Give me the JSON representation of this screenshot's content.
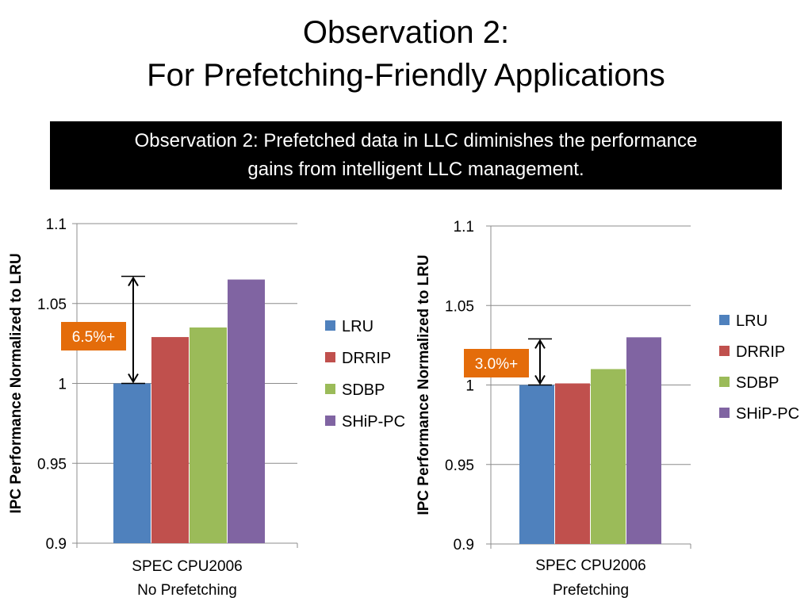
{
  "slide": {
    "title_line1": "Observation 2:",
    "title_line2": "For Prefetching-Friendly Applications",
    "banner_line1": "Observation 2: Prefetched data in LLC diminishes the performance",
    "banner_line2": "gains from intelligent LLC management."
  },
  "colors": {
    "LRU": "#4F81BD",
    "DRRIP": "#C0504D",
    "SDBP": "#9BBB59",
    "SHiP-PC": "#8064A2",
    "callout": "#E46C0A"
  },
  "chart_data": [
    {
      "type": "bar",
      "categories": [
        "SPEC CPU2006\nNo Prefetching"
      ],
      "category_lines": [
        "SPEC CPU2006",
        "No Prefetching"
      ],
      "series": [
        {
          "name": "LRU",
          "values": [
            1.0
          ]
        },
        {
          "name": "DRRIP",
          "values": [
            1.029
          ]
        },
        {
          "name": "SDBP",
          "values": [
            1.035
          ]
        },
        {
          "name": "SHiP-PC",
          "values": [
            1.065
          ]
        }
      ],
      "ylabel": "IPC Performance Normalized to LRU",
      "ylim": [
        0.9,
        1.1
      ],
      "yticks": [
        "0.9",
        "0.95",
        "1",
        "1.05",
        "1.1"
      ],
      "grid": true,
      "legend": "right",
      "annotation": {
        "text": "6.5%+",
        "from": 1.0,
        "to": 1.067
      }
    },
    {
      "type": "bar",
      "categories": [
        "SPEC CPU2006\nPrefetching"
      ],
      "category_lines": [
        "SPEC CPU2006",
        "Prefetching"
      ],
      "series": [
        {
          "name": "LRU",
          "values": [
            1.0
          ]
        },
        {
          "name": "DRRIP",
          "values": [
            1.001
          ]
        },
        {
          "name": "SDBP",
          "values": [
            1.01
          ]
        },
        {
          "name": "SHiP-PC",
          "values": [
            1.03
          ]
        }
      ],
      "ylabel": "IPC Performance Normalized to LRU",
      "ylim": [
        0.9,
        1.1
      ],
      "yticks": [
        "0.9",
        "0.95",
        "1",
        "1.05",
        "1.1"
      ],
      "grid": true,
      "legend": "right",
      "annotation": {
        "text": "3.0%+",
        "from": 1.0,
        "to": 1.029
      }
    }
  ]
}
